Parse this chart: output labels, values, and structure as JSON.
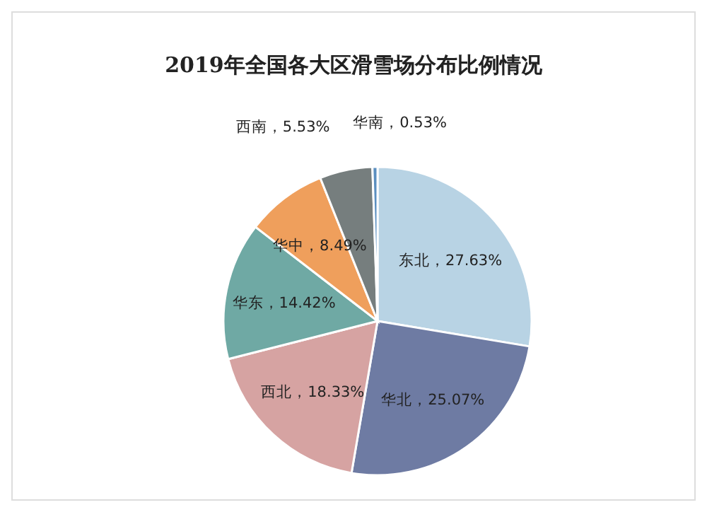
{
  "chart_data": {
    "type": "pie",
    "title": "2019年全国各大区滑雪场分布比例情况",
    "categories": [
      "东北",
      "华北",
      "西北",
      "华东",
      "华中",
      "西南",
      "华南"
    ],
    "values": [
      27.63,
      25.07,
      18.33,
      14.42,
      8.49,
      5.53,
      0.53
    ],
    "colors": [
      "#b8d3e4",
      "#6e7ba3",
      "#d6a3a2",
      "#6fa9a4",
      "#ef9f5c",
      "#767e7e",
      "#5b8fc0"
    ],
    "value_labels": [
      "27.63%",
      "25.07%",
      "18.33%",
      "14.42%",
      "8.49%",
      "5.53%",
      "0.53%"
    ]
  }
}
